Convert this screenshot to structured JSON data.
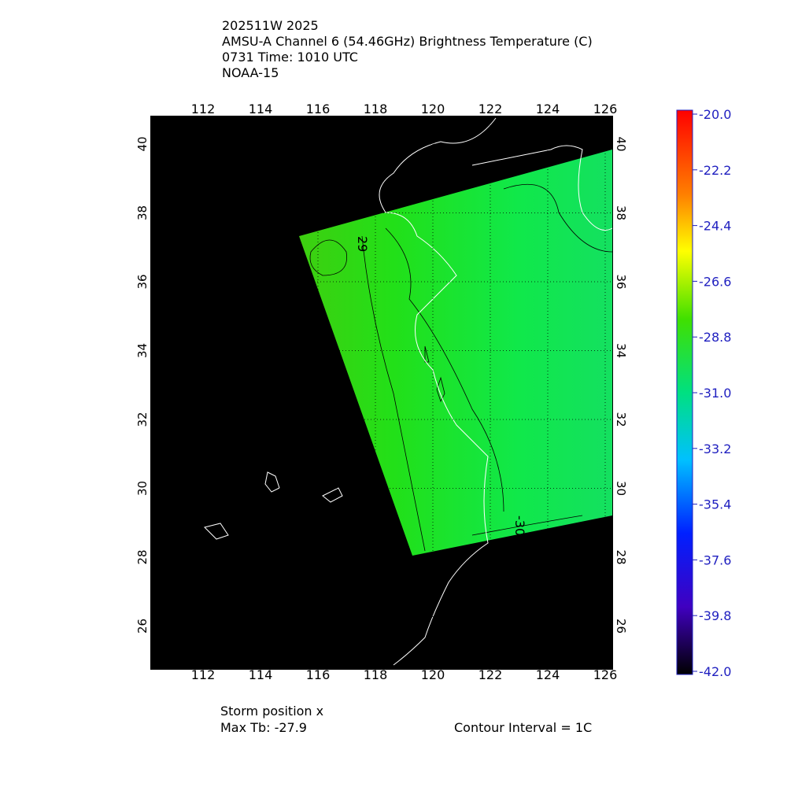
{
  "header": {
    "lines": [
      "202511W 2025",
      "AMSU-A Channel 6 (54.46GHz) Brightness Temperature (C)",
      "0731 Time: 1010 UTC",
      "NOAA-15"
    ]
  },
  "map": {
    "lon_labels": [
      "112",
      "114",
      "116",
      "118",
      "120",
      "122",
      "124",
      "126"
    ],
    "lat_labels": [
      "40",
      "38",
      "36",
      "34",
      "32",
      "30",
      "28",
      "26"
    ],
    "contour_labels": [
      "29",
      "-30"
    ]
  },
  "colorbar": {
    "labels": [
      "-20.0",
      "-22.2",
      "-24.4",
      "-26.6",
      "-28.8",
      "-31.0",
      "-33.2",
      "-35.4",
      "-37.6",
      "-39.8",
      "-42.0"
    ]
  },
  "footer": {
    "storm_position": "Storm position x",
    "max_tb": "Max Tb: -27.9",
    "contour_interval": "Contour Interval = 1C"
  }
}
